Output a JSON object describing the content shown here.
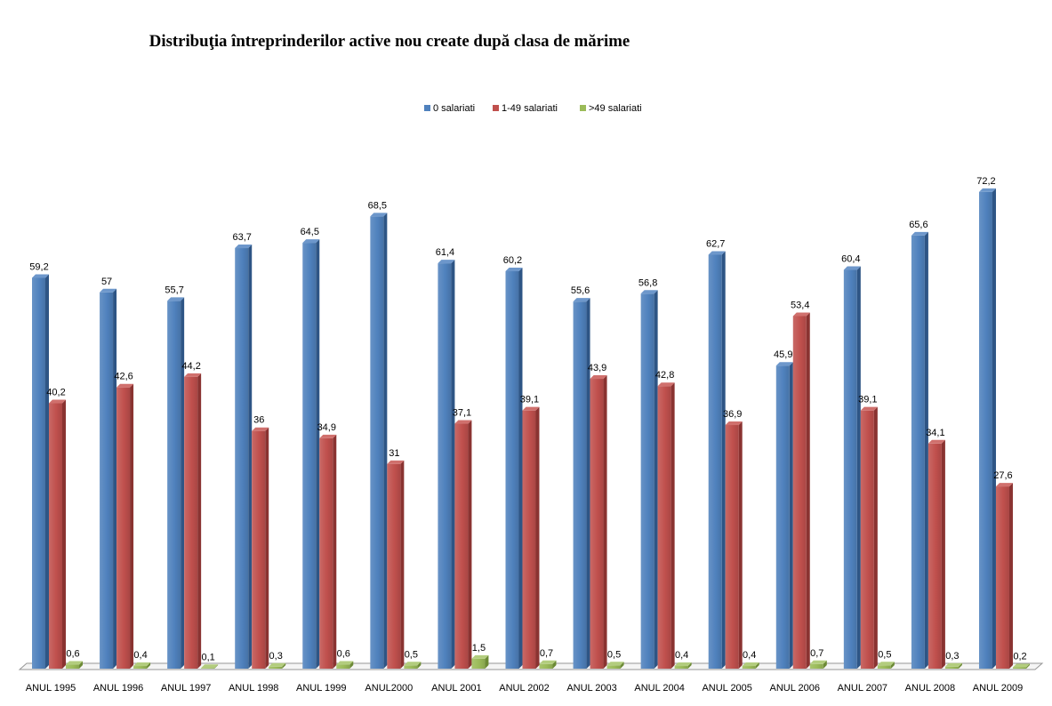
{
  "chart_data": {
    "type": "bar",
    "title": "Distribuţia întreprinderilor active nou create după clasa de mărime",
    "xlabel": "",
    "ylabel": "",
    "ylim": [
      0,
      80
    ],
    "grid": false,
    "legend": "top-center",
    "categories": [
      "ANUL 1995",
      "ANUL 1996",
      "ANUL 1997",
      "ANUL 1998",
      "ANUL 1999",
      "ANUL2000",
      "ANUL 2001",
      "ANUL 2002",
      "ANUL 2003",
      "ANUL 2004",
      "ANUL 2005",
      "ANUL 2006",
      "ANUL 2007",
      "ANUL 2008",
      "ANUL 2009"
    ],
    "series": [
      {
        "name": "0 salariati",
        "color": "#4F81BD",
        "side_color": "#2E5585",
        "top_color": "#6D97CB",
        "values": [
          59.2,
          57,
          55.7,
          63.7,
          64.5,
          68.5,
          61.4,
          60.2,
          55.6,
          56.8,
          62.7,
          45.9,
          60.4,
          65.6,
          72.2
        ],
        "value_labels": [
          "59,2",
          "57",
          "55,7",
          "63,7",
          "64,5",
          "68,5",
          "61,4",
          "60,2",
          "55,6",
          "56,8",
          "62,7",
          "45,9",
          "60,4",
          "65,6",
          "72,2"
        ]
      },
      {
        "name": "1-49 salariati",
        "color": "#C0504D",
        "side_color": "#8A3331",
        "top_color": "#D0706D",
        "values": [
          40.2,
          42.6,
          44.2,
          36,
          34.9,
          31,
          37.1,
          39.1,
          43.9,
          42.8,
          36.9,
          53.4,
          39.1,
          34.1,
          27.6
        ],
        "value_labels": [
          "40,2",
          "42,6",
          "44,2",
          "36",
          "34,9",
          "31",
          "37,1",
          "39,1",
          "43,9",
          "42,8",
          "36,9",
          "53,4",
          "39,1",
          "34,1",
          "27,6"
        ]
      },
      {
        "name": ">49 salariati",
        "color": "#9BBB59",
        "side_color": "#6C8A35",
        "top_color": "#B3CD7E",
        "values": [
          0.6,
          0.4,
          0.1,
          0.3,
          0.6,
          0.5,
          1.5,
          0.7,
          0.5,
          0.4,
          0.4,
          0.7,
          0.5,
          0.3,
          0.2
        ],
        "value_labels": [
          "0,6",
          "0,4",
          "0,1",
          "0,3",
          "0,6",
          "0,5",
          "1,5",
          "0,7",
          "0,5",
          "0,4",
          "0,4",
          "0,7",
          "0,5",
          "0,3",
          "0,2"
        ]
      }
    ]
  }
}
